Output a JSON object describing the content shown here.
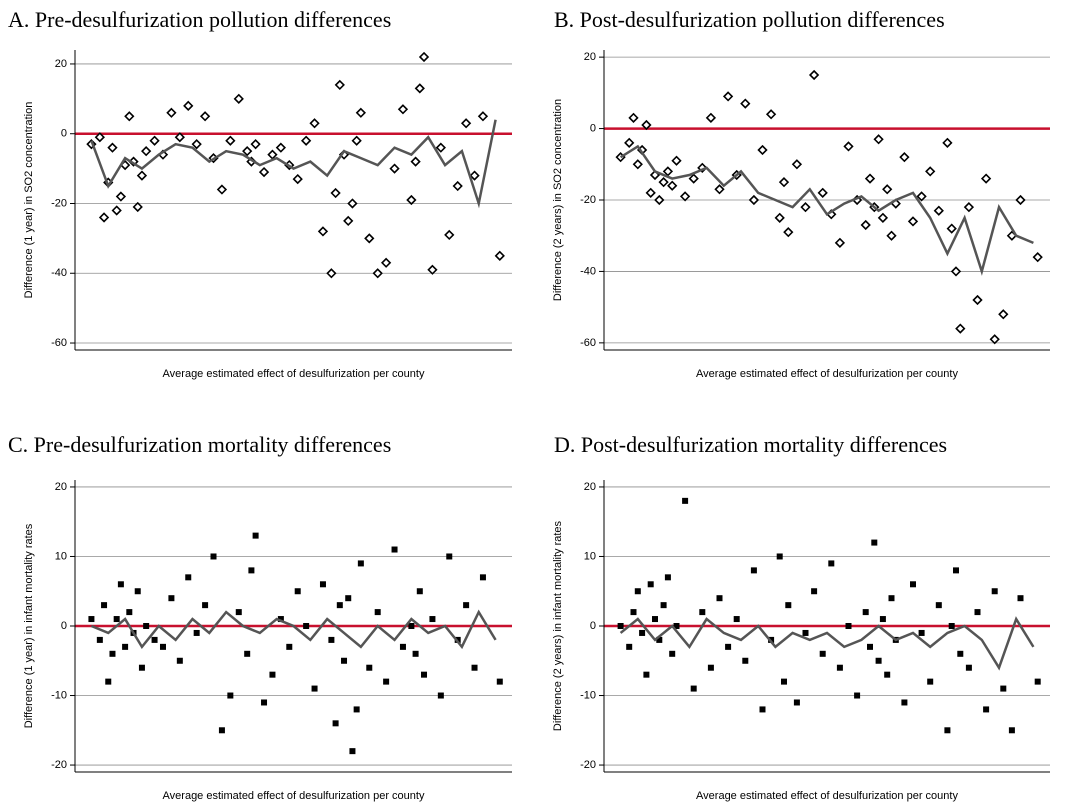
{
  "chart_data": [
    {
      "type": "scatter",
      "title": "A. Pre-desulfurization pollution differences",
      "xlabel": "Average estimated effect of desulfurization per county",
      "ylabel": "Difference (1 year) in SO2 concentration",
      "xlim": [
        0,
        100
      ],
      "ylim": [
        -62,
        24
      ],
      "yticks": [
        -60,
        -40,
        -20,
        0,
        20
      ],
      "grid": true,
      "hline": {
        "value": 0,
        "color": "#c8102e"
      },
      "series": [
        {
          "marker": "diamond",
          "color": "#000000",
          "x": [
            2,
            4,
            5,
            6,
            7,
            8,
            9,
            10,
            11,
            12,
            13,
            14,
            15,
            17,
            19,
            21,
            23,
            25,
            27,
            29,
            31,
            33,
            35,
            37,
            39,
            40,
            41,
            43,
            45,
            47,
            49,
            51,
            53,
            55,
            57,
            59,
            60,
            61,
            62,
            63,
            64,
            65,
            66,
            68,
            70,
            72,
            74,
            76,
            78,
            79,
            80,
            81,
            83,
            85,
            87,
            89,
            91,
            93,
            95,
            99
          ],
          "values": [
            -3,
            -1,
            -24,
            -14,
            -4,
            -22,
            -18,
            -9,
            5,
            -8,
            -21,
            -12,
            -5,
            -2,
            -6,
            6,
            -1,
            8,
            -3,
            5,
            -7,
            -16,
            -2,
            10,
            -5,
            -8,
            -3,
            -11,
            -6,
            -4,
            -9,
            -13,
            -2,
            3,
            -28,
            -40,
            -17,
            14,
            -6,
            -25,
            -20,
            -2,
            6,
            -30,
            -40,
            -37,
            -10,
            7,
            -19,
            -8,
            13,
            22,
            -39,
            -4,
            -29,
            -15,
            3,
            -12,
            5,
            -35
          ]
        },
        {
          "marker": "line",
          "color": "#555555",
          "x": [
            2,
            6,
            10,
            14,
            18,
            22,
            26,
            30,
            34,
            38,
            42,
            46,
            50,
            54,
            58,
            62,
            66,
            70,
            74,
            78,
            82,
            86,
            90,
            94,
            98
          ],
          "values": [
            -2,
            -15,
            -7,
            -10,
            -6,
            -3,
            -4,
            -8,
            -5,
            -6,
            -9,
            -7,
            -10,
            -8,
            -12,
            -5,
            -7,
            -9,
            -4,
            -6,
            -1,
            -9,
            -5,
            -20,
            4
          ]
        }
      ]
    },
    {
      "type": "scatter",
      "title": "B. Post-desulfurization pollution differences",
      "xlabel": "Average estimated effect of desulfurization per county",
      "ylabel": "Difference (2 years) in SO2 concentration",
      "xlim": [
        0,
        100
      ],
      "ylim": [
        -62,
        22
      ],
      "yticks": [
        -60,
        -40,
        -20,
        0,
        20
      ],
      "grid": true,
      "hline": {
        "value": 0,
        "color": "#c8102e"
      },
      "series": [
        {
          "marker": "diamond",
          "color": "#000000",
          "x": [
            2,
            4,
            5,
            6,
            7,
            8,
            9,
            10,
            11,
            12,
            13,
            14,
            15,
            17,
            19,
            21,
            23,
            25,
            27,
            29,
            31,
            33,
            35,
            37,
            39,
            40,
            41,
            43,
            45,
            47,
            49,
            51,
            53,
            55,
            57,
            59,
            60,
            61,
            62,
            63,
            64,
            65,
            66,
            68,
            70,
            72,
            74,
            76,
            78,
            79,
            80,
            81,
            83,
            85,
            87,
            89,
            91,
            93,
            95,
            99
          ],
          "values": [
            -8,
            -4,
            3,
            -10,
            -6,
            1,
            -18,
            -13,
            -20,
            -15,
            -12,
            -16,
            -9,
            -19,
            -14,
            -11,
            3,
            -17,
            9,
            -13,
            7,
            -20,
            -6,
            4,
            -25,
            -15,
            -29,
            -10,
            -22,
            15,
            -18,
            -24,
            -32,
            -5,
            -20,
            -27,
            -14,
            -22,
            -3,
            -25,
            -17,
            -30,
            -21,
            -8,
            -26,
            -19,
            -12,
            -23,
            -4,
            -28,
            -40,
            -56,
            -22,
            -48,
            -14,
            -59,
            -52,
            -30,
            -20,
            -36
          ]
        },
        {
          "marker": "line",
          "color": "#555555",
          "x": [
            2,
            6,
            10,
            14,
            18,
            22,
            26,
            30,
            34,
            38,
            42,
            46,
            50,
            54,
            58,
            62,
            66,
            70,
            74,
            78,
            82,
            86,
            90,
            94,
            98
          ],
          "values": [
            -8,
            -5,
            -12,
            -14,
            -13,
            -11,
            -16,
            -12,
            -18,
            -20,
            -22,
            -17,
            -24,
            -21,
            -19,
            -23,
            -20,
            -18,
            -25,
            -35,
            -25,
            -40,
            -22,
            -30,
            -32
          ]
        }
      ]
    },
    {
      "type": "scatter",
      "title": "C. Pre-desulfurization mortality differences",
      "xlabel": "Average estimated effect of desulfurization per county",
      "ylabel": "Difference (1 year) in infant mortality rates",
      "xlim": [
        0,
        100
      ],
      "ylim": [
        -21,
        21
      ],
      "yticks": [
        -20,
        -10,
        0,
        10,
        20
      ],
      "grid": true,
      "hline": {
        "value": 0,
        "color": "#c8102e"
      },
      "series": [
        {
          "marker": "square",
          "color": "#000000",
          "x": [
            2,
            4,
            5,
            6,
            7,
            8,
            9,
            10,
            11,
            12,
            13,
            14,
            15,
            17,
            19,
            21,
            23,
            25,
            27,
            29,
            31,
            33,
            35,
            37,
            39,
            40,
            41,
            43,
            45,
            47,
            49,
            51,
            53,
            55,
            57,
            59,
            60,
            61,
            62,
            63,
            64,
            65,
            66,
            68,
            70,
            72,
            74,
            76,
            78,
            79,
            80,
            81,
            83,
            85,
            87,
            89,
            91,
            93,
            95,
            99
          ],
          "values": [
            1,
            -2,
            3,
            -8,
            -4,
            1,
            6,
            -3,
            2,
            -1,
            5,
            -6,
            0,
            -2,
            -3,
            4,
            -5,
            7,
            -1,
            3,
            10,
            -15,
            -10,
            2,
            -4,
            8,
            13,
            -11,
            -7,
            1,
            -3,
            5,
            0,
            -9,
            6,
            -2,
            -14,
            3,
            -5,
            4,
            -18,
            -12,
            9,
            -6,
            2,
            -8,
            11,
            -3,
            0,
            -4,
            5,
            -7,
            1,
            -10,
            10,
            -2,
            3,
            -6,
            7,
            -8
          ]
        },
        {
          "marker": "line",
          "color": "#555555",
          "x": [
            2,
            6,
            10,
            14,
            18,
            22,
            26,
            30,
            34,
            38,
            42,
            46,
            50,
            54,
            58,
            62,
            66,
            70,
            74,
            78,
            82,
            86,
            90,
            94,
            98
          ],
          "values": [
            0,
            -1,
            1,
            -3,
            0,
            -2,
            1,
            -1,
            2,
            0,
            -1,
            1,
            0,
            -2,
            1,
            -1,
            -3,
            0,
            -2,
            1,
            -1,
            0,
            -3,
            2,
            -2
          ]
        }
      ]
    },
    {
      "type": "scatter",
      "title": "D. Post-desulfurization mortality differences",
      "xlabel": "Average estimated effect of desulfurization per county",
      "ylabel": "Difference (2 years) in infant mortality rates",
      "xlim": [
        0,
        100
      ],
      "ylim": [
        -21,
        21
      ],
      "yticks": [
        -20,
        -10,
        0,
        10,
        20
      ],
      "grid": true,
      "hline": {
        "value": 0,
        "color": "#c8102e"
      },
      "series": [
        {
          "marker": "square",
          "color": "#000000",
          "x": [
            2,
            4,
            5,
            6,
            7,
            8,
            9,
            10,
            11,
            12,
            13,
            14,
            15,
            17,
            19,
            21,
            23,
            25,
            27,
            29,
            31,
            33,
            35,
            37,
            39,
            40,
            41,
            43,
            45,
            47,
            49,
            51,
            53,
            55,
            57,
            59,
            60,
            61,
            62,
            63,
            64,
            65,
            66,
            68,
            70,
            72,
            74,
            76,
            78,
            79,
            80,
            81,
            83,
            85,
            87,
            89,
            91,
            93,
            95,
            99
          ],
          "values": [
            0,
            -3,
            2,
            5,
            -1,
            -7,
            6,
            1,
            -2,
            3,
            7,
            -4,
            0,
            18,
            -9,
            2,
            -6,
            4,
            -3,
            1,
            -5,
            8,
            -12,
            -2,
            10,
            -8,
            3,
            -11,
            -1,
            5,
            -4,
            9,
            -6,
            0,
            -10,
            2,
            -3,
            12,
            -5,
            1,
            -7,
            4,
            -2,
            -11,
            6,
            -1,
            -8,
            3,
            -15,
            0,
            8,
            -4,
            -6,
            2,
            -12,
            5,
            -9,
            -15,
            4,
            -8
          ]
        },
        {
          "marker": "line",
          "color": "#555555",
          "x": [
            2,
            6,
            10,
            14,
            18,
            22,
            26,
            30,
            34,
            38,
            42,
            46,
            50,
            54,
            58,
            62,
            66,
            70,
            74,
            78,
            82,
            86,
            90,
            94,
            98
          ],
          "values": [
            -1,
            1,
            -2,
            0,
            -3,
            1,
            -1,
            -2,
            0,
            -3,
            -1,
            -2,
            -1,
            -3,
            -2,
            0,
            -2,
            -1,
            -3,
            -1,
            0,
            -2,
            -6,
            1,
            -3
          ]
        }
      ]
    }
  ]
}
